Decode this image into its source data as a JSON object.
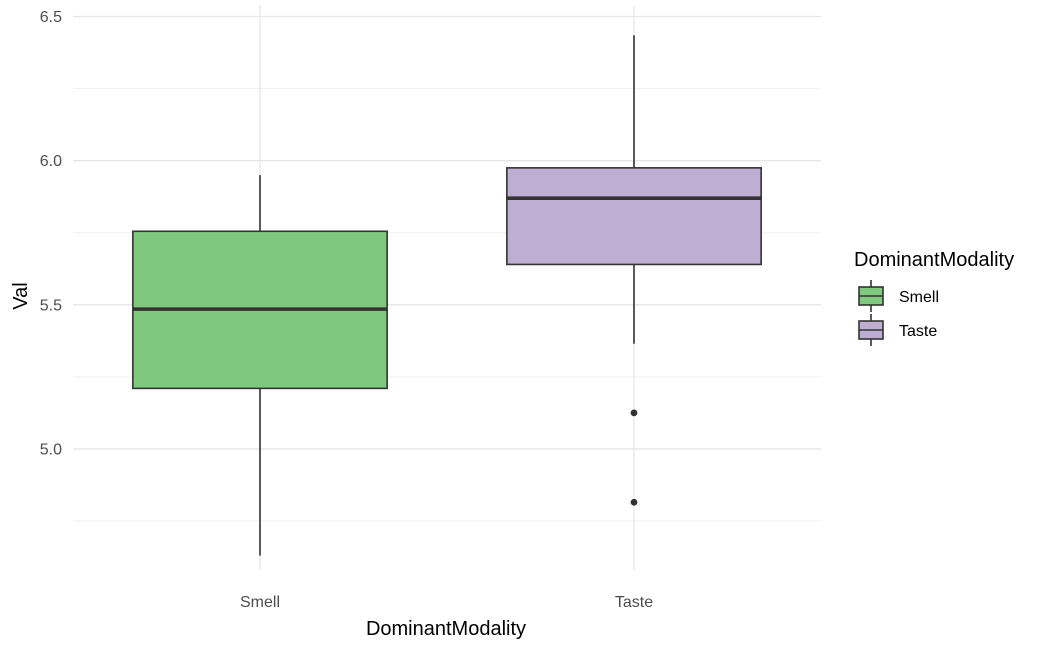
{
  "chart_data": {
    "type": "box",
    "xlabel": "DominantModality",
    "ylabel": "Val",
    "ylim": [
      4.58,
      6.54
    ],
    "y_ticks": [
      5.0,
      5.5,
      6.0,
      6.5
    ],
    "y_tick_labels": [
      "5.0",
      "5.5",
      "6.0",
      "6.5"
    ],
    "grid": true,
    "legend": {
      "title": "DominantModality",
      "position": "right"
    },
    "categories": [
      "Smell",
      "Taste"
    ],
    "series": [
      {
        "name": "Smell",
        "color": "#7FC97F",
        "whisker_low": 4.63,
        "q1": 5.21,
        "median": 5.485,
        "q3": 5.755,
        "whisker_high": 5.95,
        "outliers": []
      },
      {
        "name": "Taste",
        "color": "#BEAED4",
        "whisker_low": 5.365,
        "q1": 5.64,
        "median": 5.87,
        "q3": 5.975,
        "whisker_high": 6.435,
        "outliers": [
          5.125,
          4.815
        ]
      }
    ]
  }
}
